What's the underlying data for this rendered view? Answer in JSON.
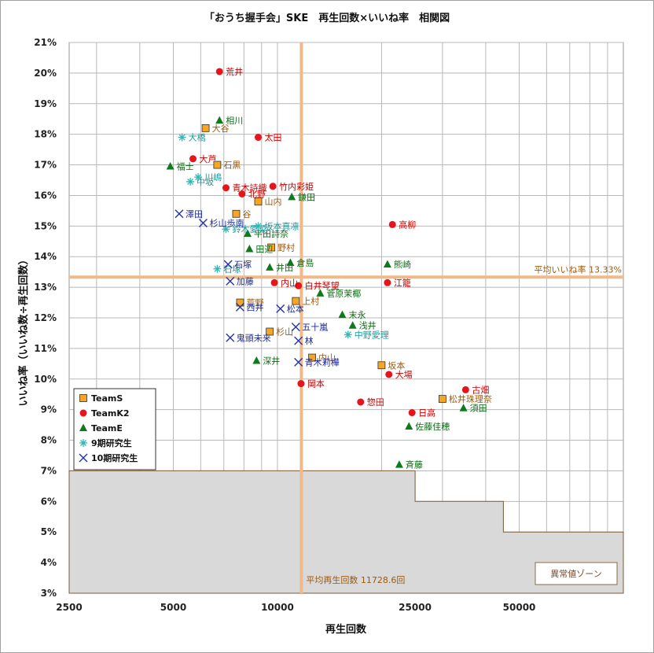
{
  "chart_data": {
    "type": "scatter",
    "title": "「おうち握手会」SKE　再生回数×いいね率　相関図",
    "xlabel": "再生回数",
    "ylabel": "いいね率（いいね数÷再生回数）",
    "x_scale": "log",
    "xlim": [
      2500,
      100000
    ],
    "ylim": [
      3,
      21
    ],
    "x_ticks": [
      "2500",
      "5000",
      "10000",
      "25000",
      "50000"
    ],
    "y_ticks": [
      "3%",
      "4%",
      "5%",
      "6%",
      "7%",
      "8%",
      "9%",
      "10%",
      "11%",
      "12%",
      "13%",
      "14%",
      "15%",
      "16%",
      "17%",
      "18%",
      "19%",
      "20%",
      "21%"
    ],
    "avg_like_rate": 13.33,
    "avg_like_label": "平均いいね率 13.33%",
    "avg_plays": 11728.6,
    "avg_plays_label": "平均再生回数 11728.6回",
    "abnormal_zone_label": "異常値ゾーン",
    "abnormal_zone": [
      [
        2500,
        7.0
      ],
      [
        25000,
        7.0
      ],
      [
        25000,
        6.0
      ],
      [
        45000,
        6.0
      ],
      [
        45000,
        5.0
      ],
      [
        100000,
        5.0
      ]
    ],
    "colors": {
      "TeamS": "#f5a623",
      "TeamK2": "#e8141c",
      "TeamE": "#0e7a1a",
      "Gen9": "#2fb8b8",
      "Gen10": "#2233aa",
      "avg_line": "#f0b98a",
      "zone": "#d9d9d9"
    },
    "legend_position": "left",
    "series": [
      {
        "name": "TeamS",
        "marker": "square",
        "label_color": "#9a5a12",
        "points": [
          {
            "label": "大谷",
            "x": 6200,
            "y": 18.2
          },
          {
            "label": "石黒",
            "x": 6700,
            "y": 17.0
          },
          {
            "label": "山内",
            "x": 8800,
            "y": 15.8
          },
          {
            "label": "谷",
            "x": 7600,
            "y": 15.4
          },
          {
            "label": "野村",
            "x": 9600,
            "y": 14.3
          },
          {
            "label": "荒野",
            "x": 7800,
            "y": 12.5
          },
          {
            "label": "上村",
            "x": 11300,
            "y": 12.55
          },
          {
            "label": "杉山",
            "x": 9500,
            "y": 11.55
          },
          {
            "label": "坂本",
            "x": 20000,
            "y": 10.45
          },
          {
            "label": "松井珠理奈",
            "x": 30000,
            "y": 9.35
          },
          {
            "label": "内山",
            "x": 12600,
            "y": 10.7
          }
        ]
      },
      {
        "name": "TeamK2",
        "marker": "circle",
        "label_color": "#cc0000",
        "points": [
          {
            "label": "荒井",
            "x": 6800,
            "y": 20.05
          },
          {
            "label": "太田",
            "x": 8800,
            "y": 17.9
          },
          {
            "label": "大芦",
            "x": 5700,
            "y": 17.2
          },
          {
            "label": "竹内彩姫",
            "x": 9700,
            "y": 16.3
          },
          {
            "label": "青木詩織",
            "x": 7100,
            "y": 16.25
          },
          {
            "label": "北野",
            "x": 7900,
            "y": 16.05
          },
          {
            "label": "高柳",
            "x": 21500,
            "y": 15.05
          },
          {
            "label": "江籠",
            "x": 20800,
            "y": 13.15
          },
          {
            "label": "日高",
            "x": 24500,
            "y": 8.9
          },
          {
            "label": "惣田",
            "x": 17400,
            "y": 9.25
          },
          {
            "label": "岡本",
            "x": 11700,
            "y": 9.85
          },
          {
            "label": "古畑",
            "x": 35000,
            "y": 9.65
          },
          {
            "label": "大場",
            "x": 21000,
            "y": 10.15
          },
          {
            "label": "白井琴望",
            "x": 11500,
            "y": 13.05
          },
          {
            "label": "内山",
            "x": 9800,
            "y": 13.15
          }
        ]
      },
      {
        "name": "TeamE",
        "marker": "triangle",
        "label_color": "#0e6a16",
        "points": [
          {
            "label": "相川",
            "x": 6800,
            "y": 18.45
          },
          {
            "label": "福士",
            "x": 4900,
            "y": 16.95
          },
          {
            "label": "鎌田",
            "x": 11000,
            "y": 15.95
          },
          {
            "label": "平田詩奈",
            "x": 8200,
            "y": 14.75
          },
          {
            "label": "田辺",
            "x": 8300,
            "y": 14.25
          },
          {
            "label": "熊崎",
            "x": 20800,
            "y": 13.75
          },
          {
            "label": "井田",
            "x": 9500,
            "y": 13.65
          },
          {
            "label": "菅原茉椰",
            "x": 13300,
            "y": 12.8
          },
          {
            "label": "末永",
            "x": 15400,
            "y": 12.1
          },
          {
            "label": "浅井",
            "x": 16500,
            "y": 11.75
          },
          {
            "label": "深井",
            "x": 8700,
            "y": 10.6
          },
          {
            "label": "佐藤佳穂",
            "x": 24000,
            "y": 8.45
          },
          {
            "label": "須田",
            "x": 34500,
            "y": 9.05
          },
          {
            "label": "斉藤",
            "x": 22500,
            "y": 7.2
          },
          {
            "label": "倉島",
            "x": 10900,
            "y": 13.8
          }
        ]
      },
      {
        "name": "9期研究生",
        "marker": "asterisk",
        "label_color": "#1a9a9a",
        "points": [
          {
            "label": "大橋",
            "x": 5300,
            "y": 17.9
          },
          {
            "label": "川嶋",
            "x": 5900,
            "y": 16.6
          },
          {
            "label": "中坂",
            "x": 5600,
            "y": 16.45
          },
          {
            "label": "鈴木愛菜",
            "x": 7100,
            "y": 14.9
          },
          {
            "label": "坂本真凛",
            "x": 8800,
            "y": 15.0
          },
          {
            "label": "石塚",
            "x": 6700,
            "y": 13.6
          },
          {
            "label": "中野愛理",
            "x": 16000,
            "y": 11.45
          }
        ]
      },
      {
        "name": "10期研究生",
        "marker": "x",
        "label_color": "#1a2a9a",
        "points": [
          {
            "label": "澤田",
            "x": 5200,
            "y": 15.4
          },
          {
            "label": "杉山歩南",
            "x": 6100,
            "y": 15.1
          },
          {
            "label": "石塚",
            "x": 7200,
            "y": 13.75
          },
          {
            "label": "加藤",
            "x": 7300,
            "y": 13.2
          },
          {
            "label": "西井",
            "x": 7800,
            "y": 12.35
          },
          {
            "label": "鬼頭未来",
            "x": 7300,
            "y": 11.35
          },
          {
            "label": "五十嵐",
            "x": 11300,
            "y": 11.7
          },
          {
            "label": "林",
            "x": 11500,
            "y": 11.25
          },
          {
            "label": "青木莉樺",
            "x": 11500,
            "y": 10.55
          },
          {
            "label": "松本",
            "x": 10200,
            "y": 12.3
          }
        ]
      }
    ]
  }
}
